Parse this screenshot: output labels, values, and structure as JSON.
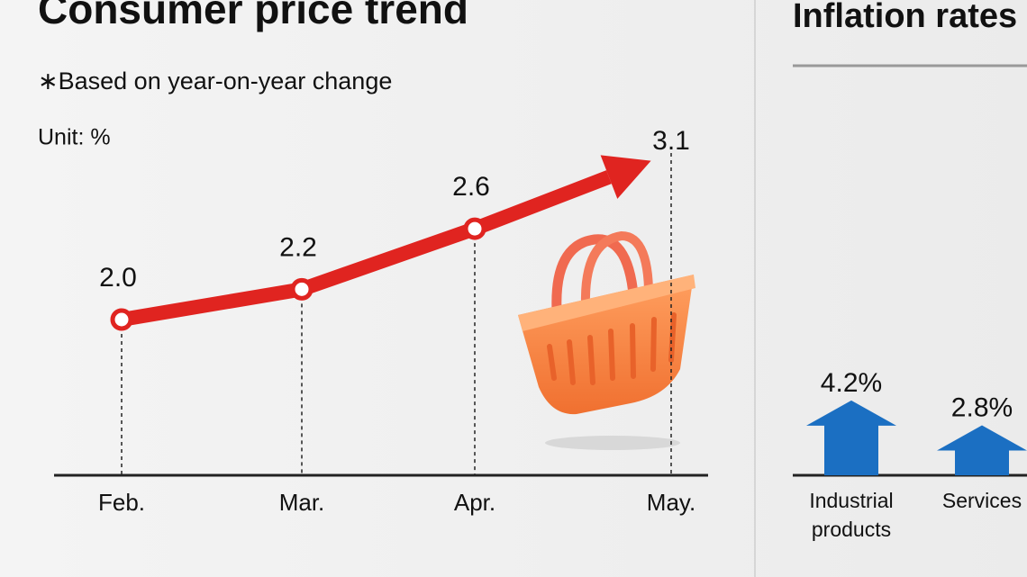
{
  "chart_data": [
    {
      "type": "line",
      "title": "Consumer price trend",
      "subtitle": "∗Based on year-on-year change",
      "unit": "Unit: %",
      "categories": [
        "Feb.",
        "Mar.",
        "Apr.",
        "May."
      ],
      "values": [
        2.0,
        2.2,
        2.6,
        3.1
      ],
      "value_labels": [
        "2.0",
        "2.2",
        "2.6",
        "3.1"
      ],
      "color": "#e02420"
    },
    {
      "type": "arrow",
      "title": "Inflation rates",
      "categories": [
        "Industrial products",
        "Services"
      ],
      "values": [
        4.2,
        2.8
      ],
      "value_labels": [
        "4.2%",
        "2.8%"
      ],
      "color": "#1b6fc2"
    }
  ]
}
